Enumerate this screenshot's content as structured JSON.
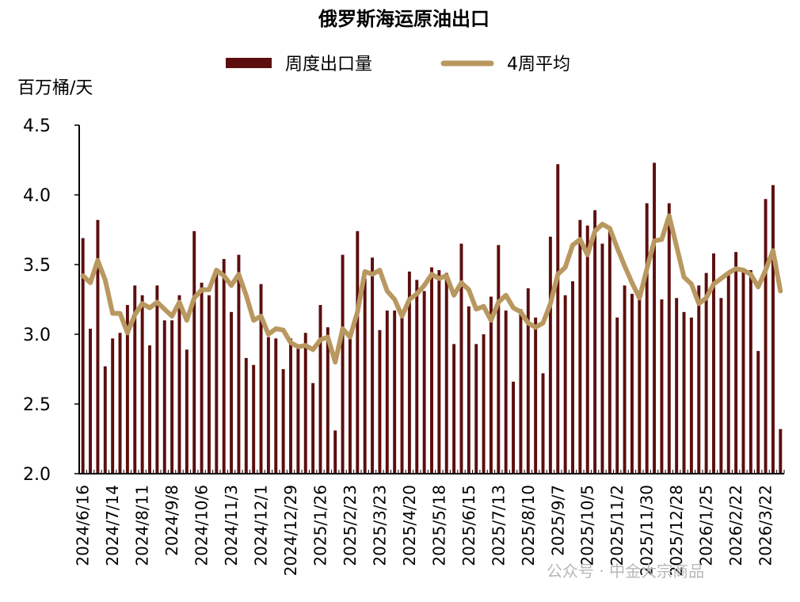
{
  "chart_data": {
    "type": "bar",
    "title": "俄罗斯海运原油出口",
    "ylabel": "百万桶/天",
    "ylim": [
      2.0,
      4.5
    ],
    "yticks": [
      "2.0",
      "2.5",
      "3.0",
      "3.5",
      "4.0",
      "4.5"
    ],
    "ytick_values": [
      2.0,
      2.5,
      3.0,
      3.5,
      4.0,
      4.5
    ],
    "legend_position": "top",
    "xtick_labels": [
      "2024/6/16",
      "2024/7/14",
      "2024/8/11",
      "2024/9/8",
      "2024/10/6",
      "2024/11/3",
      "2024/12/1",
      "2024/12/29",
      "2025/1/26",
      "2025/2/23",
      "2025/3/23",
      "2025/4/20",
      "2025/5/18",
      "2025/6/15",
      "2025/7/13",
      "2025/8/10",
      "2025/9/7",
      "2025/10/5",
      "2025/11/2",
      "2025/11/30",
      "2025/12/28",
      "2026/1/25",
      "2026/2/22",
      "2026/3/22"
    ],
    "series": [
      {
        "name": "周度出口量",
        "kind": "bar",
        "color": "#5c0e0e",
        "values": [
          3.69,
          3.04,
          3.82,
          2.77,
          2.97,
          3.01,
          3.21,
          3.35,
          3.28,
          2.92,
          3.35,
          3.1,
          3.1,
          3.28,
          2.89,
          3.74,
          3.37,
          3.28,
          3.45,
          3.54,
          3.16,
          3.57,
          2.83,
          2.78,
          3.36,
          2.98,
          2.97,
          2.75,
          2.97,
          2.9,
          3.01,
          2.65,
          3.21,
          3.05,
          2.31,
          3.57,
          3.0,
          3.74,
          3.4,
          3.55,
          3.03,
          3.17,
          3.17,
          3.13,
          3.45,
          3.39,
          3.31,
          3.48,
          3.46,
          3.44,
          2.93,
          3.65,
          3.2,
          2.93,
          3.0,
          3.27,
          3.64,
          3.17,
          2.66,
          3.18,
          3.33,
          3.12,
          2.72,
          3.7,
          4.22,
          3.28,
          3.38,
          3.82,
          3.78,
          3.89,
          3.65,
          3.75,
          3.12,
          3.35,
          3.29,
          3.25,
          3.94,
          4.23,
          3.25,
          3.94,
          3.26,
          3.16,
          3.12,
          3.35,
          3.44,
          3.58,
          3.26,
          3.43,
          3.59,
          3.46,
          3.46,
          2.88,
          3.97,
          4.07,
          2.32
        ]
      },
      {
        "name": "4周平均",
        "kind": "line",
        "color": "#b99860",
        "values": [
          3.42,
          3.37,
          3.53,
          3.39,
          3.15,
          3.15,
          3.01,
          3.14,
          3.22,
          3.19,
          3.23,
          3.18,
          3.13,
          3.23,
          3.1,
          3.26,
          3.32,
          3.32,
          3.46,
          3.42,
          3.35,
          3.43,
          3.28,
          3.1,
          3.13,
          3.0,
          3.04,
          3.03,
          2.94,
          2.91,
          2.92,
          2.89,
          2.96,
          2.98,
          2.8,
          3.04,
          2.98,
          3.16,
          3.45,
          3.43,
          3.46,
          3.31,
          3.25,
          3.13,
          3.25,
          3.29,
          3.35,
          3.43,
          3.4,
          3.42,
          3.28,
          3.37,
          3.32,
          3.18,
          3.2,
          3.1,
          3.23,
          3.28,
          3.19,
          3.16,
          3.08,
          3.05,
          3.08,
          3.22,
          3.43,
          3.48,
          3.64,
          3.68,
          3.57,
          3.74,
          3.79,
          3.76,
          3.62,
          3.49,
          3.37,
          3.26,
          3.47,
          3.67,
          3.68,
          3.85,
          3.63,
          3.41,
          3.36,
          3.22,
          3.26,
          3.36,
          3.4,
          3.44,
          3.47,
          3.46,
          3.43,
          3.34,
          3.46,
          3.6,
          3.31
        ]
      }
    ]
  },
  "watermark": {
    "text": "公众号 · 中金大宗商品"
  }
}
